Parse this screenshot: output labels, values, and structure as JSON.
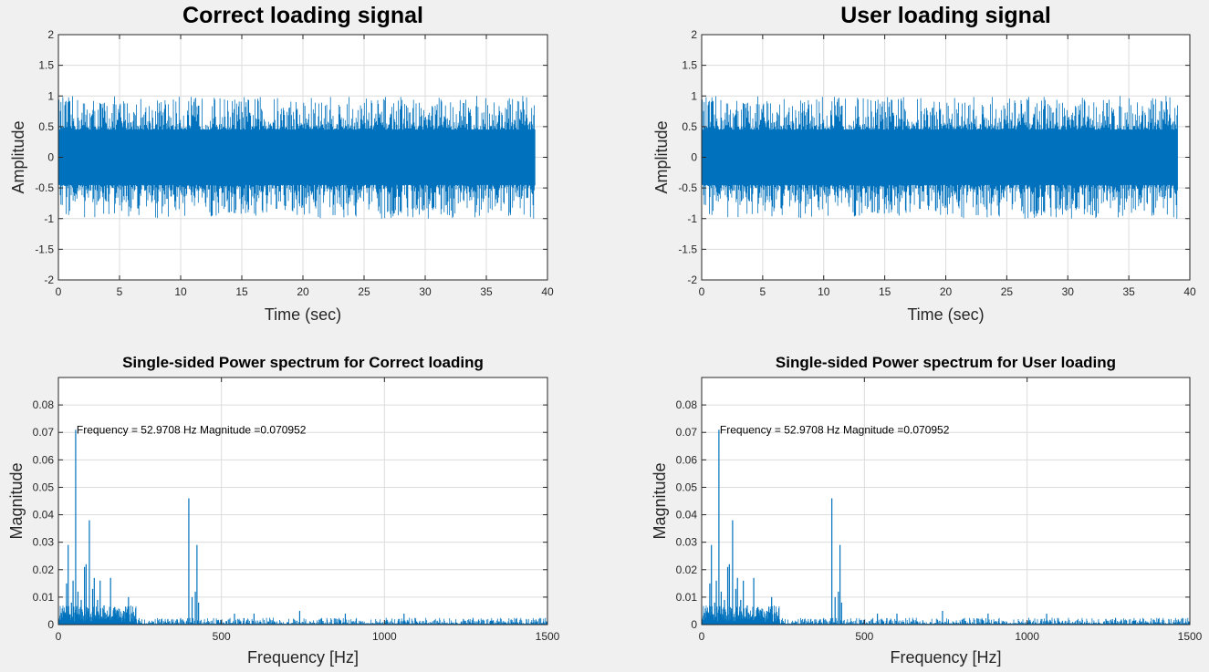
{
  "figure": {
    "background": "#f0f0f0",
    "series_color": "#0072bd"
  },
  "chart_data": [
    {
      "type": "line",
      "title": "Correct loading signal",
      "xlabel": "Time (sec)",
      "ylabel": "Amplitude",
      "xlim": [
        0,
        40
      ],
      "ylim": [
        -2,
        2
      ],
      "xticks": [
        0,
        5,
        10,
        15,
        20,
        25,
        30,
        35,
        40
      ],
      "yticks": [
        2,
        1.5,
        1,
        0.5,
        0,
        -0.5,
        -1,
        -1.5,
        -2
      ],
      "grid": true,
      "signal": {
        "x_start": 0,
        "x_end": 39,
        "amplitude_min": -1,
        "amplitude_max": 1
      }
    },
    {
      "type": "line",
      "title": "User loading signal",
      "xlabel": "Time (sec)",
      "ylabel": "Amplitude",
      "xlim": [
        0,
        40
      ],
      "ylim": [
        -2,
        2
      ],
      "xticks": [
        0,
        5,
        10,
        15,
        20,
        25,
        30,
        35,
        40
      ],
      "yticks": [
        2,
        1.5,
        1,
        0.5,
        0,
        -0.5,
        -1,
        -1.5,
        -2
      ],
      "grid": true,
      "signal": {
        "x_start": 0,
        "x_end": 39,
        "amplitude_min": -1,
        "amplitude_max": 1
      }
    },
    {
      "type": "bar",
      "title": "Single-sided Power spectrum for Correct loading",
      "xlabel": "Frequency [Hz]",
      "ylabel": "Magnitude",
      "xlim": [
        0,
        1500
      ],
      "ylim": [
        0,
        0.09
      ],
      "xticks": [
        0,
        500,
        1000,
        1500
      ],
      "yticks": [
        0,
        0.01,
        0.02,
        0.03,
        0.04,
        0.05,
        0.06,
        0.07,
        0.08
      ],
      "grid": true,
      "annotation": {
        "text": "Frequency = 52.9708 Hz    Magnitude =0.070952",
        "x": 52.9708,
        "y": 0.070952
      },
      "peaks": [
        [
          25,
          0.015
        ],
        [
          30,
          0.029
        ],
        [
          40,
          0.008
        ],
        [
          45,
          0.016
        ],
        [
          52.97,
          0.070952
        ],
        [
          60,
          0.012
        ],
        [
          70,
          0.009
        ],
        [
          80,
          0.021
        ],
        [
          85,
          0.022
        ],
        [
          95,
          0.038
        ],
        [
          105,
          0.013
        ],
        [
          110,
          0.017
        ],
        [
          120,
          0.009
        ],
        [
          128,
          0.016
        ],
        [
          140,
          0.007
        ],
        [
          160,
          0.017
        ],
        [
          170,
          0.006
        ],
        [
          180,
          0.005
        ],
        [
          200,
          0.005
        ],
        [
          215,
          0.01
        ],
        [
          400,
          0.046
        ],
        [
          410,
          0.01
        ],
        [
          420,
          0.012
        ],
        [
          425,
          0.029
        ],
        [
          430,
          0.008
        ],
        [
          540,
          0.004
        ],
        [
          600,
          0.004
        ],
        [
          740,
          0.005
        ],
        [
          880,
          0.004
        ],
        [
          1060,
          0.004
        ]
      ]
    },
    {
      "type": "bar",
      "title": "Single-sided Power spectrum for User loading",
      "xlabel": "Frequency [Hz]",
      "ylabel": "Magnitude",
      "xlim": [
        0,
        1500
      ],
      "ylim": [
        0,
        0.09
      ],
      "xticks": [
        0,
        500,
        1000,
        1500
      ],
      "yticks": [
        0,
        0.01,
        0.02,
        0.03,
        0.04,
        0.05,
        0.06,
        0.07,
        0.08
      ],
      "grid": true,
      "annotation": {
        "text": "Frequency = 52.9708 Hz    Magnitude =0.070952",
        "x": 52.9708,
        "y": 0.070952
      },
      "peaks": [
        [
          25,
          0.015
        ],
        [
          30,
          0.029
        ],
        [
          40,
          0.008
        ],
        [
          45,
          0.016
        ],
        [
          52.97,
          0.070952
        ],
        [
          60,
          0.012
        ],
        [
          70,
          0.009
        ],
        [
          80,
          0.021
        ],
        [
          85,
          0.022
        ],
        [
          95,
          0.038
        ],
        [
          105,
          0.013
        ],
        [
          110,
          0.017
        ],
        [
          120,
          0.009
        ],
        [
          128,
          0.016
        ],
        [
          140,
          0.007
        ],
        [
          160,
          0.017
        ],
        [
          170,
          0.006
        ],
        [
          180,
          0.005
        ],
        [
          200,
          0.005
        ],
        [
          215,
          0.01
        ],
        [
          400,
          0.046
        ],
        [
          410,
          0.01
        ],
        [
          420,
          0.012
        ],
        [
          425,
          0.029
        ],
        [
          430,
          0.008
        ],
        [
          540,
          0.004
        ],
        [
          600,
          0.004
        ],
        [
          740,
          0.005
        ],
        [
          880,
          0.004
        ],
        [
          1060,
          0.004
        ]
      ]
    }
  ]
}
